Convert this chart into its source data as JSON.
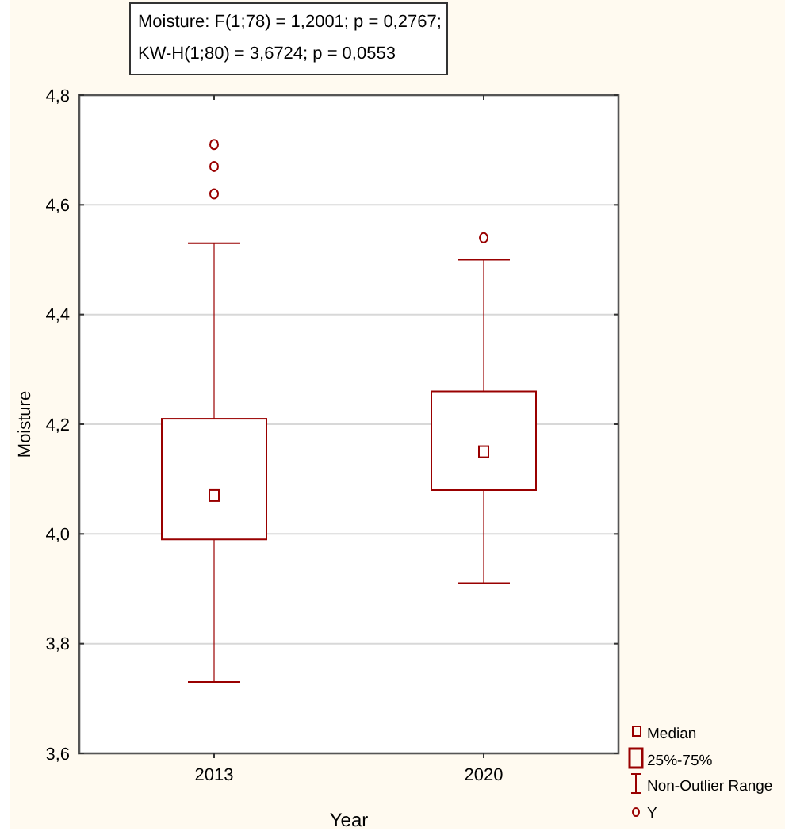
{
  "chart_data": {
    "type": "box",
    "xlabel": "Year",
    "ylabel": "Moisture",
    "annotations": [
      "Moisture:   F(1;78) = 1,2001; p = 0,2767;",
      "KW-H(1;80) = 3,6724; p = 0,0553",
      "Median",
      "25%-75%",
      "Non-Outlier Range"
    ],
    "categories": [
      "2013",
      "2020"
    ],
    "series": [
      {
        "name": "Y",
        "color": "#990000",
        "boxes": [
          {
            "low": 3.73,
            "q1": 3.99,
            "median": 4.07,
            "q3": 4.21,
            "high": 4.53,
            "outliers": [
              4.62,
              4.67,
              4.71
            ]
          },
          {
            "low": 3.91,
            "q1": 4.08,
            "median": 4.15,
            "q3": 4.26,
            "high": 4.5,
            "outliers": [
              4.54
            ]
          }
        ]
      }
    ],
    "ylim": [
      3.6,
      4.8
    ],
    "yticks": [
      {
        "value": 3.6,
        "label": "3,6"
      },
      {
        "value": 3.8,
        "label": "3,8"
      },
      {
        "value": 4.0,
        "label": "4,0"
      },
      {
        "value": 4.2,
        "label": "4,2"
      },
      {
        "value": 4.4,
        "label": "4,4"
      },
      {
        "value": 4.6,
        "label": "4,6"
      },
      {
        "value": 4.8,
        "label": "4,8"
      }
    ],
    "grid": "y",
    "legend": "bottom right"
  }
}
